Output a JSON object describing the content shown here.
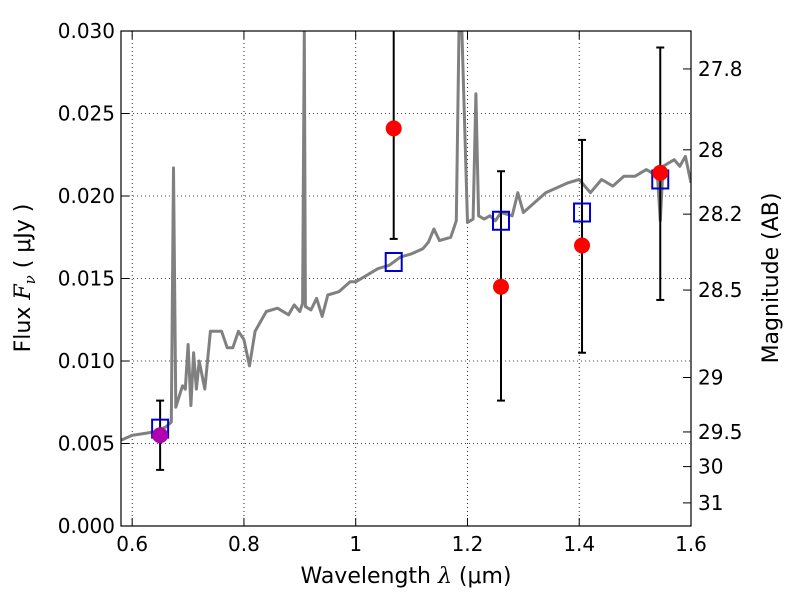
{
  "chart_data": {
    "type": "scatter",
    "xlabel": {
      "prefix": "Wavelength  ",
      "symbol": "λ",
      "unit": " (μm)"
    },
    "ylabel": {
      "prefix": "Flux  ",
      "symbol": "F",
      "subscript": "ν",
      "unit": "  ( μJy )"
    },
    "ylabel_right": "Magnitude (AB)",
    "xlim": [
      0.58,
      1.6
    ],
    "ylim": [
      0.0,
      0.03
    ],
    "grid": true,
    "x_ticks": [
      {
        "value": 0.6,
        "label": "0.6"
      },
      {
        "value": 0.8,
        "label": "0.8"
      },
      {
        "value": 1.0,
        "label": "1"
      },
      {
        "value": 1.2,
        "label": "1.2"
      },
      {
        "value": 1.4,
        "label": "1.4"
      },
      {
        "value": 1.6,
        "label": "1.6"
      }
    ],
    "y_ticks": [
      {
        "value": 0.0,
        "label": "0.000"
      },
      {
        "value": 0.005,
        "label": "0.005"
      },
      {
        "value": 0.01,
        "label": "0.010"
      },
      {
        "value": 0.015,
        "label": "0.015"
      },
      {
        "value": 0.02,
        "label": "0.020"
      },
      {
        "value": 0.025,
        "label": "0.025"
      },
      {
        "value": 0.03,
        "label": "0.030"
      }
    ],
    "right_ticks": [
      {
        "label": "27.8",
        "flux": 0.0277
      },
      {
        "label": "28",
        "flux": 0.0228
      },
      {
        "label": "28.2",
        "flux": 0.0189
      },
      {
        "label": "28.5",
        "flux": 0.0143
      },
      {
        "label": "29",
        "flux": 0.009
      },
      {
        "label": "29.5",
        "flux": 0.0057
      },
      {
        "label": "30",
        "flux": 0.0036
      },
      {
        "label": "31",
        "flux": 0.0014
      }
    ],
    "model_spectrum": {
      "color": "#808080",
      "points": [
        [
          0.58,
          0.0052
        ],
        [
          0.6,
          0.0055
        ],
        [
          0.62,
          0.0056
        ],
        [
          0.64,
          0.0057
        ],
        [
          0.66,
          0.006
        ],
        [
          0.67,
          0.0063
        ],
        [
          0.674,
          0.0217
        ],
        [
          0.678,
          0.0072
        ],
        [
          0.69,
          0.0085
        ],
        [
          0.695,
          0.0083
        ],
        [
          0.7,
          0.011
        ],
        [
          0.705,
          0.0073
        ],
        [
          0.71,
          0.0105
        ],
        [
          0.715,
          0.0083
        ],
        [
          0.72,
          0.01
        ],
        [
          0.73,
          0.0083
        ],
        [
          0.74,
          0.0118
        ],
        [
          0.76,
          0.0118
        ],
        [
          0.77,
          0.0108
        ],
        [
          0.78,
          0.0108
        ],
        [
          0.79,
          0.0118
        ],
        [
          0.8,
          0.0113
        ],
        [
          0.81,
          0.0097
        ],
        [
          0.82,
          0.0118
        ],
        [
          0.83,
          0.0124
        ],
        [
          0.84,
          0.013
        ],
        [
          0.86,
          0.0132
        ],
        [
          0.88,
          0.0128
        ],
        [
          0.89,
          0.0134
        ],
        [
          0.9,
          0.013
        ],
        [
          0.905,
          0.0135
        ],
        [
          0.908,
          0.03
        ],
        [
          0.91,
          0.0133
        ],
        [
          0.92,
          0.0131
        ],
        [
          0.93,
          0.0138
        ],
        [
          0.94,
          0.0127
        ],
        [
          0.95,
          0.014
        ],
        [
          0.97,
          0.0142
        ],
        [
          0.99,
          0.0148
        ],
        [
          1.0,
          0.0148
        ],
        [
          1.02,
          0.0152
        ],
        [
          1.04,
          0.0156
        ],
        [
          1.06,
          0.0158
        ],
        [
          1.08,
          0.0163
        ],
        [
          1.1,
          0.0165
        ],
        [
          1.12,
          0.0168
        ],
        [
          1.13,
          0.0172
        ],
        [
          1.14,
          0.018
        ],
        [
          1.15,
          0.0173
        ],
        [
          1.17,
          0.0175
        ],
        [
          1.18,
          0.0185
        ],
        [
          1.185,
          0.0305
        ],
        [
          1.19,
          0.03
        ],
        [
          1.2,
          0.0184
        ],
        [
          1.21,
          0.0186
        ],
        [
          1.215,
          0.0262
        ],
        [
          1.22,
          0.0188
        ],
        [
          1.23,
          0.0186
        ],
        [
          1.24,
          0.0188
        ],
        [
          1.25,
          0.0185
        ],
        [
          1.26,
          0.019
        ],
        [
          1.28,
          0.0188
        ],
        [
          1.29,
          0.0202
        ],
        [
          1.3,
          0.019
        ],
        [
          1.32,
          0.0196
        ],
        [
          1.34,
          0.0202
        ],
        [
          1.36,
          0.0205
        ],
        [
          1.38,
          0.0208
        ],
        [
          1.4,
          0.021
        ],
        [
          1.42,
          0.0202
        ],
        [
          1.44,
          0.021
        ],
        [
          1.46,
          0.0206
        ],
        [
          1.48,
          0.0212
        ],
        [
          1.5,
          0.0212
        ],
        [
          1.52,
          0.0216
        ],
        [
          1.54,
          0.0212
        ],
        [
          1.545,
          0.0185
        ],
        [
          1.55,
          0.0218
        ],
        [
          1.57,
          0.0222
        ],
        [
          1.58,
          0.0218
        ],
        [
          1.59,
          0.0224
        ],
        [
          1.6,
          0.0208
        ]
      ]
    },
    "model_bandpass": {
      "color": "#0000cc",
      "points": [
        [
          0.65,
          0.0059
        ],
        [
          1.068,
          0.016
        ],
        [
          1.26,
          0.0185
        ],
        [
          1.405,
          0.019
        ],
        [
          1.545,
          0.021
        ]
      ]
    },
    "observations": {
      "color": "#ff0000",
      "points": [
        {
          "x": 1.068,
          "y": 0.0241,
          "err_low": 0.0174,
          "err_high": 0.0306
        },
        {
          "x": 1.26,
          "y": 0.0145,
          "err_low": 0.0076,
          "err_high": 0.0215
        },
        {
          "x": 1.405,
          "y": 0.017,
          "err_low": 0.0105,
          "err_high": 0.0234
        },
        {
          "x": 1.545,
          "y": 0.0214,
          "err_low": 0.0137,
          "err_high": 0.029
        }
      ]
    },
    "detection": {
      "color": "#b000b0",
      "point": {
        "x": 0.65,
        "y": 0.0055,
        "err_low": 0.0034,
        "err_high": 0.0076
      }
    }
  }
}
